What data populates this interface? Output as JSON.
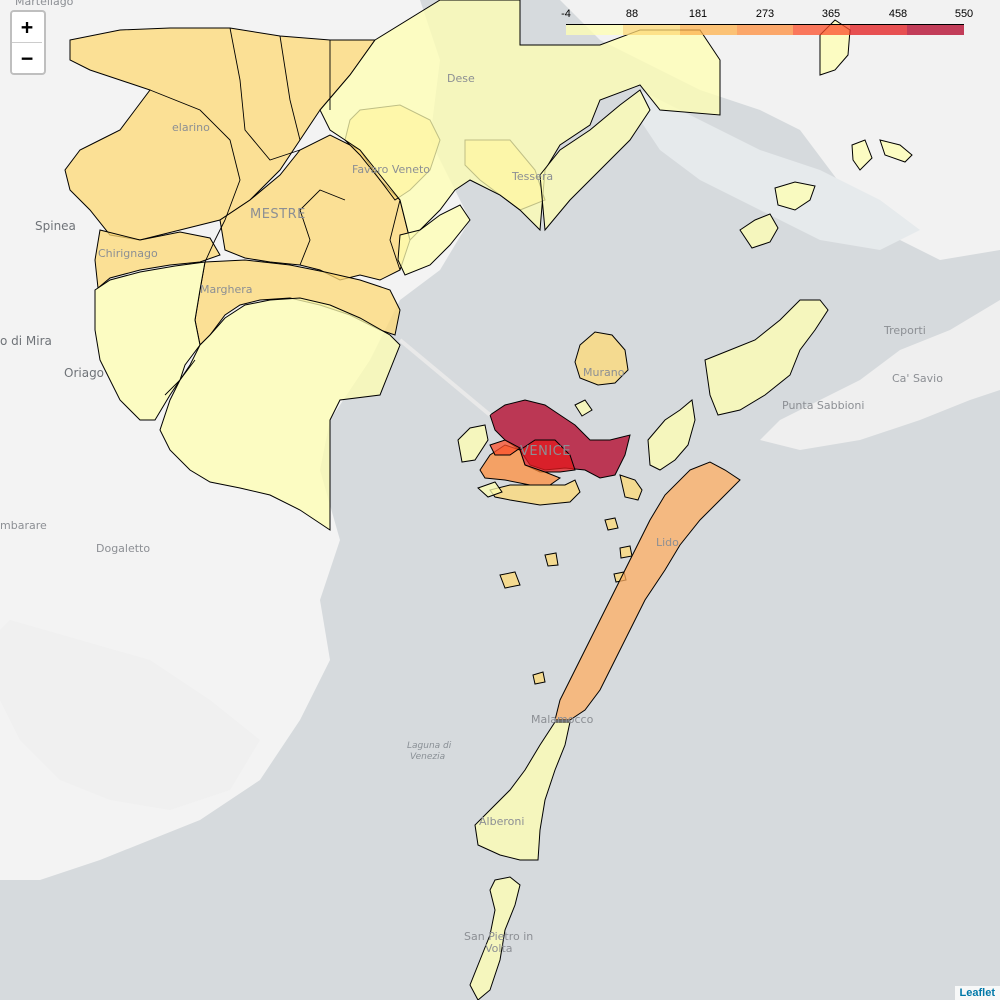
{
  "map": {
    "places": [
      {
        "id": "martellago",
        "label": "Martellago"
      },
      {
        "id": "dese",
        "label": "Dese"
      },
      {
        "id": "spinea",
        "label": "Spinea"
      },
      {
        "id": "mestre",
        "label": "MESTRE"
      },
      {
        "id": "favaro",
        "label": "Favaro Veneto"
      },
      {
        "id": "tessera",
        "label": "Tessera"
      },
      {
        "id": "chirignago",
        "label": "Chirignago"
      },
      {
        "id": "marghera",
        "label": "Marghera"
      },
      {
        "id": "mira",
        "label": "o di Mira"
      },
      {
        "id": "oriago",
        "label": "Oriago"
      },
      {
        "id": "murano",
        "label": "Murano"
      },
      {
        "id": "venice",
        "label": "VENICE"
      },
      {
        "id": "treporti",
        "label": "Treporti"
      },
      {
        "id": "casavio",
        "label": "Ca' Savio"
      },
      {
        "id": "puntasabbioni",
        "label": "Punta Sabbioni"
      },
      {
        "id": "mbarare",
        "label": "mbarare"
      },
      {
        "id": "dogaletto",
        "label": "Dogaletto"
      },
      {
        "id": "lido",
        "label": "Lido"
      },
      {
        "id": "malamocco",
        "label": "Malamocco"
      },
      {
        "id": "laguna1",
        "label": "Laguna di"
      },
      {
        "id": "laguna2",
        "label": "Venezia"
      },
      {
        "id": "alberoni",
        "label": "Alberoni"
      },
      {
        "id": "sanpietro1",
        "label": "San Pietro in"
      },
      {
        "id": "sanpietro2",
        "label": "Volta"
      },
      {
        "id": "selelarino",
        "label": "elarino"
      }
    ]
  },
  "controls": {
    "zoom_in": "+",
    "zoom_out": "−"
  },
  "legend": {
    "ticks": [
      "-4",
      "88",
      "181",
      "273",
      "365",
      "458",
      "550"
    ],
    "colors": [
      "#ffffb2",
      "#fed976",
      "#feb24c",
      "#fd8d3c",
      "#fc4e2a",
      "#e31a1c",
      "#b10026"
    ]
  },
  "attribution": "Leaflet"
}
